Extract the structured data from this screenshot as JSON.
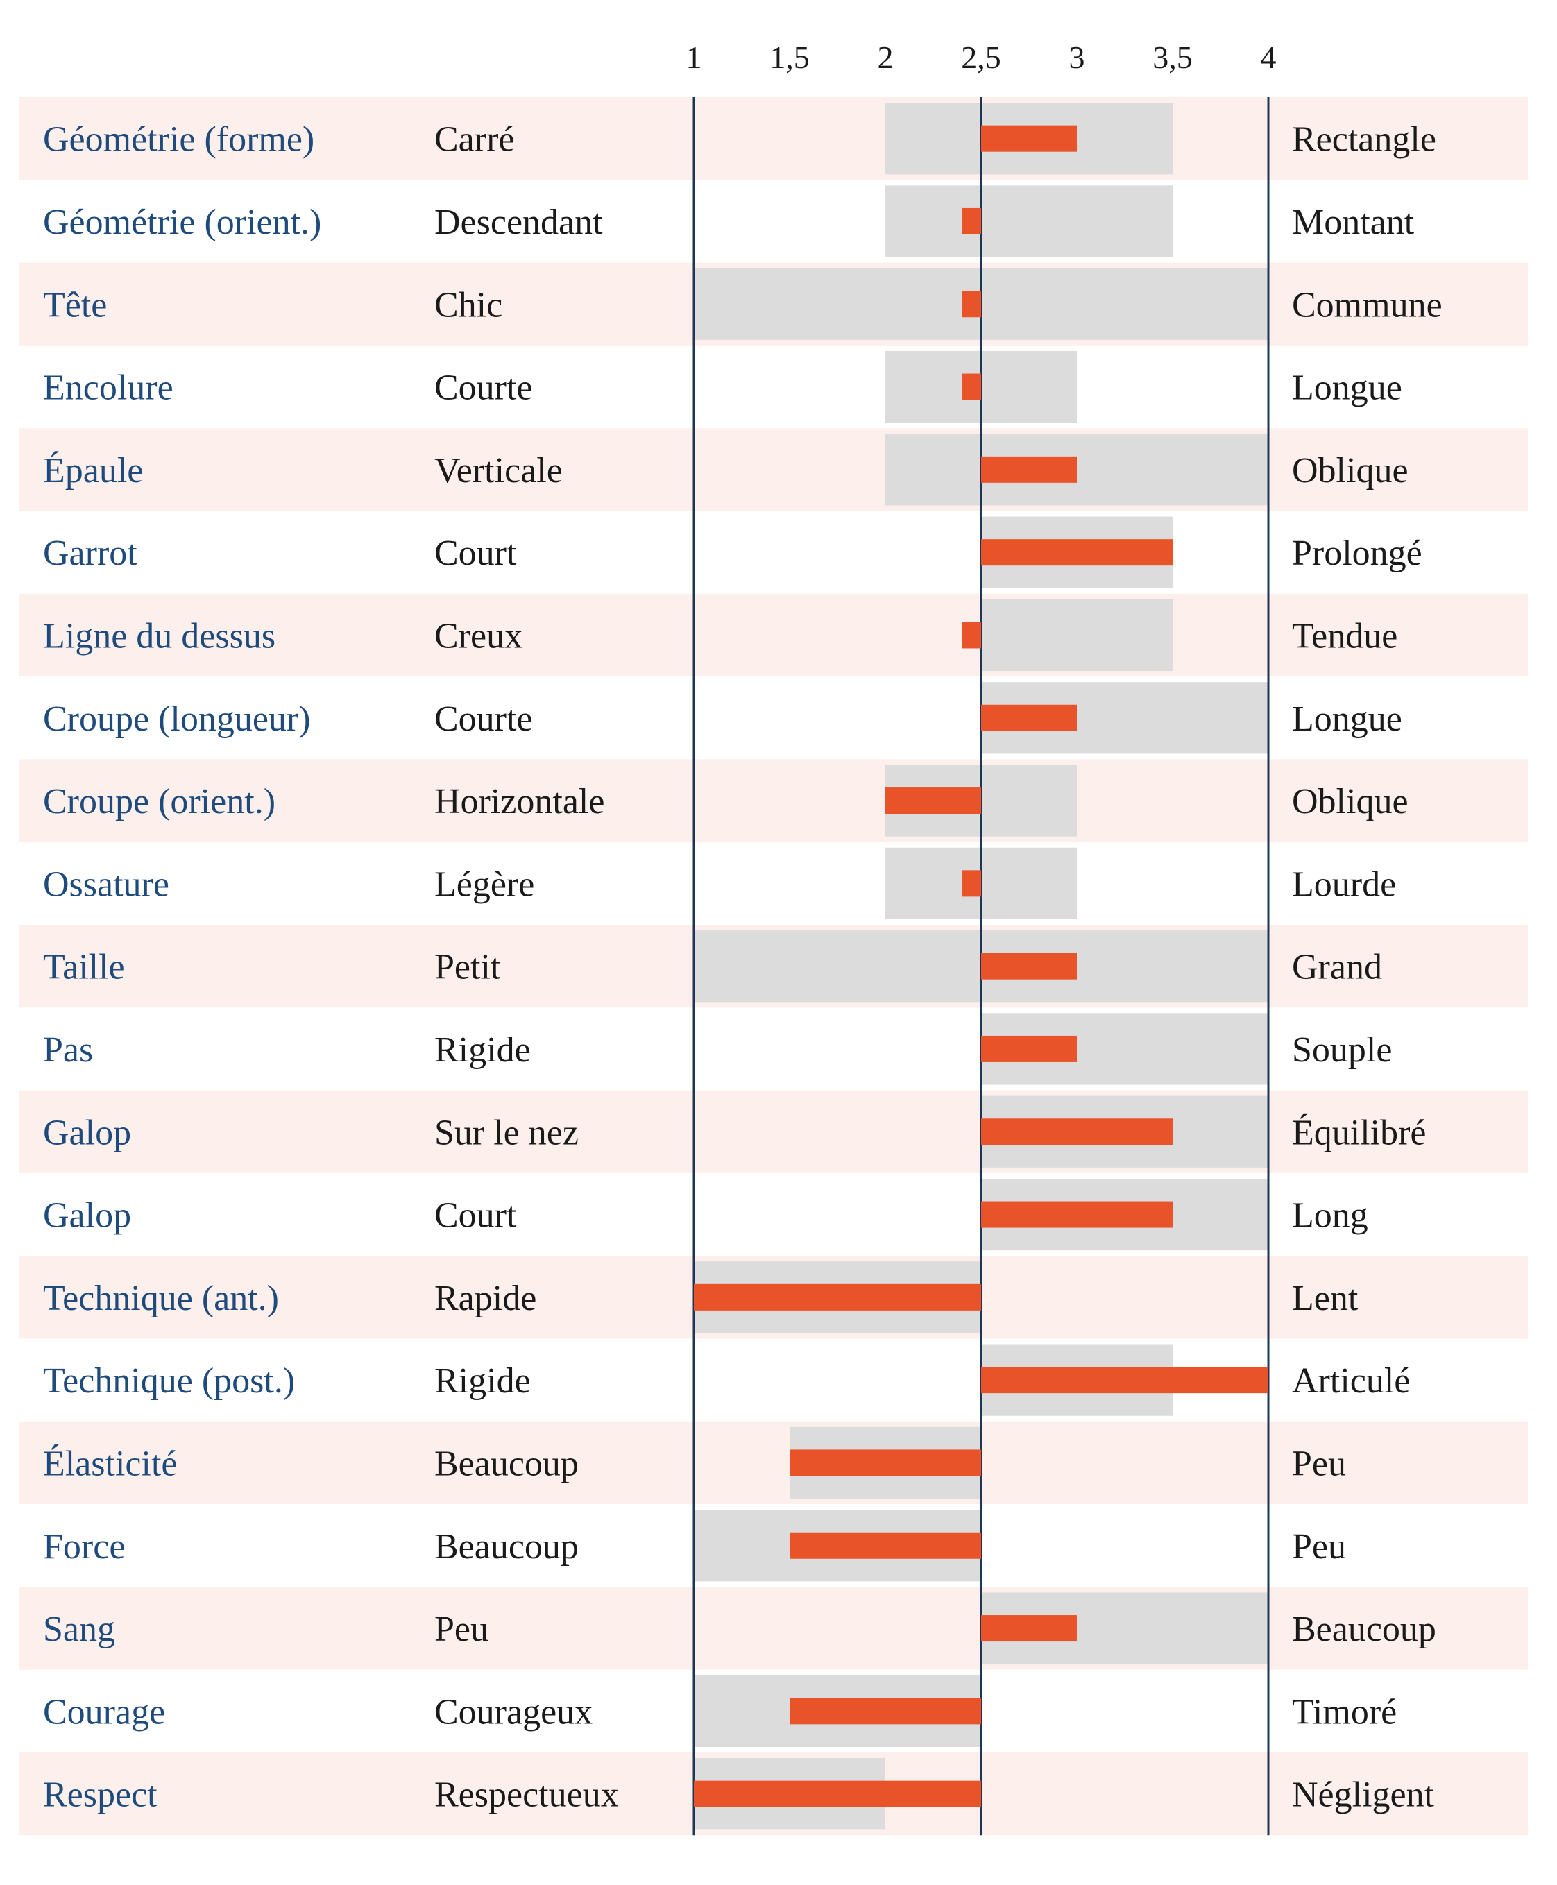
{
  "chart_data": {
    "type": "bar",
    "x_ticks": [
      "1",
      "1,5",
      "2",
      "2,5",
      "3",
      "3,5",
      "4"
    ],
    "xlim": [
      1,
      4
    ],
    "reference_value": 2.5,
    "rows": [
      {
        "trait": "Géométrie (forme)",
        "low": "Carré",
        "high": "Rectangle",
        "range": [
          2,
          3.5
        ],
        "value": 3
      },
      {
        "trait": "Géométrie (orient.)",
        "low": "Descendant",
        "high": "Montant",
        "range": [
          2,
          3.5
        ],
        "value": 2.4
      },
      {
        "trait": "Tête",
        "low": "Chic",
        "high": "Commune",
        "range": [
          1,
          4
        ],
        "value": 2.4
      },
      {
        "trait": "Encolure",
        "low": "Courte",
        "high": "Longue",
        "range": [
          2,
          3
        ],
        "value": 2.4
      },
      {
        "trait": "Épaule",
        "low": "Verticale",
        "high": "Oblique",
        "range": [
          2,
          4
        ],
        "value": 3
      },
      {
        "trait": "Garrot",
        "low": "Court",
        "high": "Prolongé",
        "range": [
          2.5,
          3.5
        ],
        "value": 3.5
      },
      {
        "trait": "Ligne du dessus",
        "low": "Creux",
        "high": "Tendue",
        "range": [
          2.5,
          3.5
        ],
        "value": 2.4
      },
      {
        "trait": "Croupe (longueur)",
        "low": "Courte",
        "high": "Longue",
        "range": [
          2.5,
          4
        ],
        "value": 3
      },
      {
        "trait": "Croupe (orient.)",
        "low": "Horizontale",
        "high": "Oblique",
        "range": [
          2,
          3
        ],
        "value": 2
      },
      {
        "trait": "Ossature",
        "low": "Légère",
        "high": "Lourde",
        "range": [
          2,
          3
        ],
        "value": 2.4
      },
      {
        "trait": "Taille",
        "low": "Petit",
        "high": "Grand",
        "range": [
          1,
          4
        ],
        "value": 3
      },
      {
        "trait": "Pas",
        "low": "Rigide",
        "high": "Souple",
        "range": [
          2.5,
          4
        ],
        "value": 3
      },
      {
        "trait": "Galop",
        "low": "Sur le nez",
        "high": "Équilibré",
        "range": [
          2.5,
          4
        ],
        "value": 3.5
      },
      {
        "trait": "Galop",
        "low": "Court",
        "high": "Long",
        "range": [
          2.5,
          4
        ],
        "value": 3.5
      },
      {
        "trait": "Technique (ant.)",
        "low": "Rapide",
        "high": "Lent",
        "range": [
          1,
          2.5
        ],
        "value": 1
      },
      {
        "trait": "Technique (post.)",
        "low": "Rigide",
        "high": "Articulé",
        "range": [
          2.5,
          3.5
        ],
        "value": 4
      },
      {
        "trait": "Élasticité",
        "low": "Beaucoup",
        "high": "Peu",
        "range": [
          1.5,
          2.5
        ],
        "value": 1.5
      },
      {
        "trait": "Force",
        "low": "Beaucoup",
        "high": "Peu",
        "range": [
          1,
          2.5
        ],
        "value": 1.5
      },
      {
        "trait": "Sang",
        "low": "Peu",
        "high": "Beaucoup",
        "range": [
          2.5,
          4
        ],
        "value": 3
      },
      {
        "trait": "Courage",
        "low": "Courageux",
        "high": "Timoré",
        "range": [
          1,
          2.5
        ],
        "value": 1.5
      },
      {
        "trait": "Respect",
        "low": "Respectueux",
        "high": "Négligent",
        "range": [
          1,
          2
        ],
        "value": 1
      }
    ]
  },
  "colors": {
    "row_stripe": "#fdf0ec",
    "range_band": "#dcdcdc",
    "value_bar": "#e8532a",
    "axis_line": "#1f3556",
    "trait_text": "#1f4a7c",
    "pole_text": "#1a1a1a"
  }
}
